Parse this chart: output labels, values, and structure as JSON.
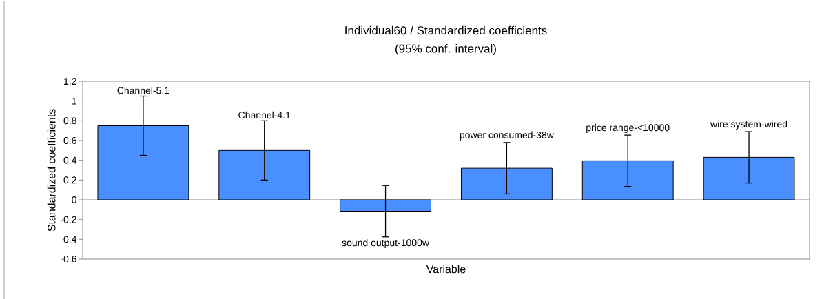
{
  "chart_data": {
    "type": "bar",
    "title": "Individual60 / Standardized coefficients",
    "subtitle": "(95% conf. interval)",
    "xlabel": "Variable",
    "ylabel": "Standardized coefficients",
    "categories": [
      "Channel-5.1",
      "Channel-4.1",
      "sound output-1000w",
      "power consumed-38w",
      "price range-<10000",
      "wire system-wired"
    ],
    "values": [
      0.75,
      0.5,
      -0.115,
      0.32,
      0.395,
      0.43
    ],
    "errors": [
      0.3,
      0.3,
      0.26,
      0.26,
      0.26,
      0.26
    ],
    "color": "#4a8fff",
    "ylim": [
      -0.6,
      1.2
    ],
    "yticks": [
      -0.6,
      -0.4,
      -0.2,
      0,
      0.2,
      0.4,
      0.6,
      0.8,
      1,
      1.2
    ],
    "tick_labels": "y"
  }
}
